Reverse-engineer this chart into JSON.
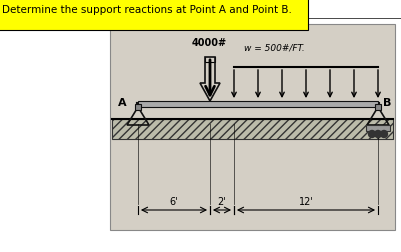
{
  "title": "Determine the support reactions at Point A and Point B.",
  "title_bg": "#ffff00",
  "fig_bg": "#ffffff",
  "diagram_bg": "#c8c0b0",
  "beam_color": "#111111",
  "load_4000_label": "4000#",
  "dist_load_label": "w = 500#/FT.",
  "dist_load_num_arrows": 7,
  "dim_6_label": "6'",
  "dim_2_label": "2'",
  "dim_12_label": "12'"
}
